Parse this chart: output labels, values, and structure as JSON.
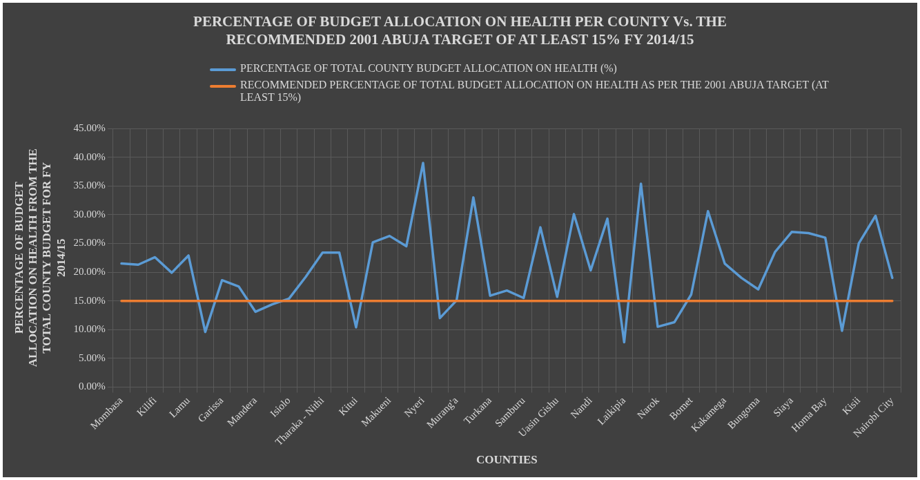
{
  "chart_data": {
    "type": "line",
    "title": "PERCENTAGE OF BUDGET ALLOCATION ON HEALTH PER COUNTY Vs. THE RECOMMENDED 2001 ABUJA TARGET OF AT LEAST 15% FY 2014/15",
    "xlabel": "COUNTIES",
    "ylabel": "PERCENTAGE OF BUDGET ALLOCATION ON HEALTH FROM THE TOTAL COUNTY BUDGET FOR FY 2014/15",
    "categories": [
      "Mombasa",
      null,
      "Kilifi",
      null,
      "Lamu",
      null,
      "Garissa",
      null,
      "Mandera",
      null,
      "Isiolo",
      null,
      "Tharaka - Nithi",
      null,
      "Kitui",
      null,
      "Makueni",
      null,
      "Nyeri",
      null,
      "Murang'a",
      null,
      "Turkana",
      null,
      "Samburu",
      null,
      "Uasin Gishu",
      null,
      "Nandi",
      null,
      "Laikipia",
      null,
      "Narok",
      null,
      "Bomet",
      null,
      "Kakamega",
      null,
      "Bungoma",
      null,
      "Siaya",
      null,
      "Homa Bay",
      null,
      "Kisii",
      null,
      "Nairobi City"
    ],
    "series": [
      {
        "name": "PERCENTAGE OF TOTAL COUNTY BUDGET ALLOCATION ON HEALTH (%)",
        "color": "#5b9bd5",
        "values": [
          21.5,
          21.3,
          22.6,
          19.9,
          22.9,
          9.6,
          18.6,
          17.5,
          13.1,
          14.4,
          15.4,
          19.2,
          23.4,
          23.4,
          10.4,
          25.2,
          26.3,
          24.5,
          39.0,
          12.0,
          15.1,
          33.0,
          15.9,
          16.8,
          15.5,
          27.8,
          15.7,
          30.1,
          20.3,
          29.3,
          7.8,
          35.4,
          10.5,
          11.3,
          16.1,
          30.6,
          21.5,
          19.0,
          17.0,
          23.5,
          27.0,
          26.8,
          26.0,
          9.8,
          25.0,
          29.8,
          19.0
        ]
      },
      {
        "name": "RECOMMENDED PERCENTAGE OF TOTAL BUDGET ALLOCATION ON HEALTH AS PER THE 2001 ABUJA TARGET (AT LEAST 15%)",
        "color": "#ed7d31",
        "values": [
          15,
          15,
          15,
          15,
          15,
          15,
          15,
          15,
          15,
          15,
          15,
          15,
          15,
          15,
          15,
          15,
          15,
          15,
          15,
          15,
          15,
          15,
          15,
          15,
          15,
          15,
          15,
          15,
          15,
          15,
          15,
          15,
          15,
          15,
          15,
          15,
          15,
          15,
          15,
          15,
          15,
          15,
          15,
          15,
          15,
          15,
          15
        ]
      }
    ],
    "ylim": [
      0,
      45
    ],
    "yticks": [
      {
        "value": 0,
        "label": "0.00%"
      },
      {
        "value": 5,
        "label": "5.00%"
      },
      {
        "value": 10,
        "label": "10.00%"
      },
      {
        "value": 15,
        "label": "15.00%"
      },
      {
        "value": 20,
        "label": "20.00%"
      },
      {
        "value": 25,
        "label": "25.00%"
      },
      {
        "value": 30,
        "label": "30.00%"
      },
      {
        "value": 35,
        "label": "35.00%"
      },
      {
        "value": 40,
        "label": "40.00%"
      },
      {
        "value": 45,
        "label": "45.00%"
      }
    ],
    "grid": true,
    "legend": "top",
    "marker": "none",
    "line_style": "solid"
  }
}
